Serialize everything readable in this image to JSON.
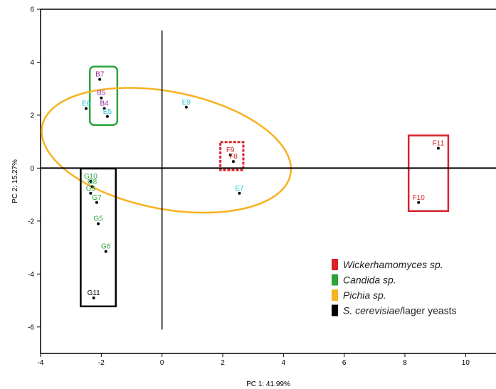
{
  "chart_data": {
    "type": "scatter",
    "xlabel": "PC 1: 41.99%",
    "ylabel": "PC 2: 15.27%",
    "xlim": [
      -4,
      11
    ],
    "ylim": [
      -7,
      6
    ],
    "x_ticks": [
      "-4",
      "-2",
      "0",
      "2",
      "4",
      "6",
      "8",
      "10"
    ],
    "y_ticks": [
      "6",
      "4",
      "2",
      "0",
      "-2",
      "-4",
      "-6"
    ],
    "grid": false,
    "points": [
      {
        "label": "B7",
        "x": -2.05,
        "y": 3.35,
        "color": "#9b2c9b"
      },
      {
        "label": "B5",
        "x": -2.0,
        "y": 2.65,
        "color": "#9b2c9b"
      },
      {
        "label": "B4",
        "x": -1.9,
        "y": 2.25,
        "color": "#9b2c9b"
      },
      {
        "label": "E6",
        "x": -2.5,
        "y": 2.25,
        "color": "#27c3cf"
      },
      {
        "label": "E5",
        "x": -1.8,
        "y": 1.95,
        "color": "#27c3cf"
      },
      {
        "label": "E9",
        "x": 0.8,
        "y": 2.3,
        "color": "#27c3cf"
      },
      {
        "label": "F9",
        "x": 2.25,
        "y": 0.5,
        "color": "#d9232a"
      },
      {
        "label": "F8",
        "x": 2.35,
        "y": 0.25,
        "color": "#d9232a"
      },
      {
        "label": "E7",
        "x": 2.55,
        "y": -0.95,
        "color": "#27c3cf"
      },
      {
        "label": "F11",
        "x": 9.1,
        "y": 0.75,
        "color": "#d9232a"
      },
      {
        "label": "F10",
        "x": 8.45,
        "y": -1.3,
        "color": "#d9232a"
      },
      {
        "label": "G10",
        "x": -2.35,
        "y": -0.5,
        "color": "#2aa43a"
      },
      {
        "label": "G8",
        "x": -2.3,
        "y": -0.7,
        "color": "#2aa43a"
      },
      {
        "label": "G9",
        "x": -2.35,
        "y": -0.95,
        "color": "#2aa43a"
      },
      {
        "label": "G7",
        "x": -2.15,
        "y": -1.3,
        "color": "#2aa43a"
      },
      {
        "label": "G5",
        "x": -2.1,
        "y": -2.1,
        "color": "#2aa43a"
      },
      {
        "label": "G6",
        "x": -1.85,
        "y": -3.15,
        "color": "#2aa43a"
      },
      {
        "label": "G11",
        "x": -2.25,
        "y": -4.9,
        "color": "#000000"
      }
    ],
    "group_outlines": [
      {
        "shape": "rect",
        "color": "#2aa43a",
        "style": "solid",
        "members": [
          "B7",
          "B5",
          "B4",
          "E5"
        ]
      },
      {
        "shape": "ellipse",
        "color": "#f6b221",
        "style": "solid",
        "members": [
          "E6",
          "E9",
          "F9",
          "F8",
          "E7"
        ]
      },
      {
        "shape": "rect",
        "color": "#d9232a",
        "style": "dashed",
        "members": [
          "F9",
          "F8"
        ]
      },
      {
        "shape": "rect",
        "color": "#d9232a",
        "style": "solid",
        "members": [
          "F11",
          "F10"
        ]
      },
      {
        "shape": "rect",
        "color": "#000000",
        "style": "solid",
        "members": [
          "G10",
          "G8",
          "G9",
          "G7",
          "G5",
          "G6",
          "G11"
        ]
      }
    ],
    "legend": {
      "placement": "bottom-right",
      "entries": [
        {
          "label": "Wickerhamomyces sp.",
          "color": "#d9232a"
        },
        {
          "label": "Candida sp.",
          "color": "#2aa43a"
        },
        {
          "label": "Pichia sp.",
          "color": "#f6b221"
        },
        {
          "label_italic": "S. cerevisiae",
          "label_rest": "/lager yeasts",
          "color": "#000000"
        }
      ]
    }
  }
}
